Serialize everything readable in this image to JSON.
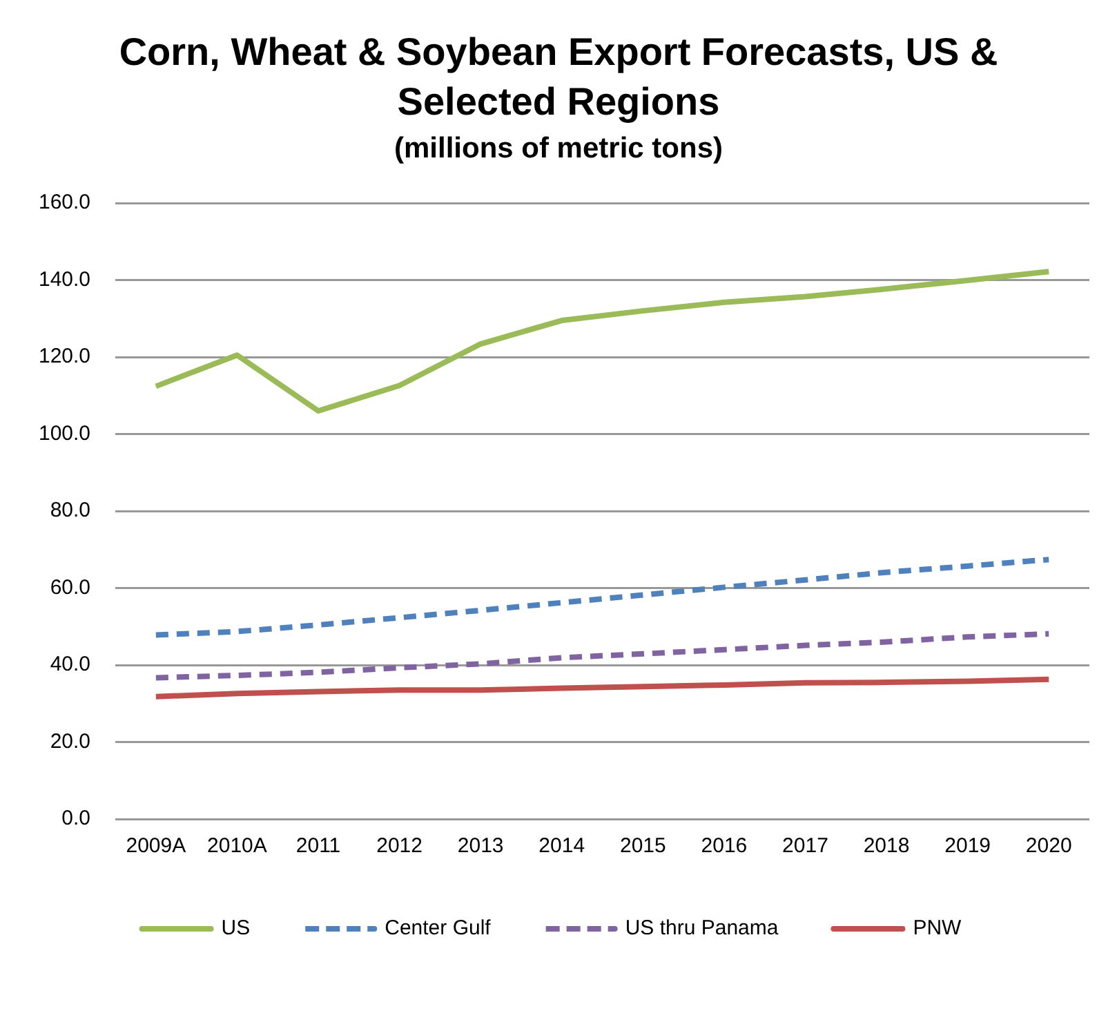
{
  "chart_data": {
    "type": "line",
    "title": "Corn, Wheat & Soybean Export Forecasts, US & Selected Regions",
    "subtitle": "(millions of metric tons)",
    "categories": [
      "2009A",
      "2010A",
      "2011",
      "2012",
      "2013",
      "2014",
      "2015",
      "2016",
      "2017",
      "2018",
      "2019",
      "2020"
    ],
    "series": [
      {
        "name": "US",
        "color": "#9bbb59",
        "line_style": "solid",
        "values": [
          112.4,
          120.5,
          106,
          112.6,
          123.4,
          129.5,
          132,
          134.2,
          135.7,
          137.7,
          139.9,
          142.2
        ]
      },
      {
        "name": "Center Gulf",
        "color": "#4f81bd",
        "line_style": "dashed",
        "values": [
          47.8,
          48.7,
          50.4,
          52.3,
          54.2,
          56.2,
          58.2,
          60.2,
          62.1,
          64.1,
          65.7,
          67.4
        ]
      },
      {
        "name": "US thru Panama",
        "color": "#8064a2",
        "line_style": "dashed",
        "values": [
          36.7,
          37.3,
          38.1,
          39.3,
          40.3,
          41.9,
          42.9,
          44,
          45.1,
          46,
          47.3,
          48.1
        ]
      },
      {
        "name": "PNW",
        "color": "#c0504d",
        "line_style": "solid",
        "values": [
          31.8,
          32.6,
          33.1,
          33.5,
          33.5,
          34,
          34.4,
          34.8,
          35.4,
          35.5,
          35.8,
          36.3
        ]
      }
    ],
    "ylim": [
      0,
      160
    ],
    "yticks": [
      {
        "value": 0,
        "label": "0.0"
      },
      {
        "value": 20,
        "label": "20.0"
      },
      {
        "value": 40,
        "label": "40.0"
      },
      {
        "value": 60,
        "label": "60.0"
      },
      {
        "value": 80,
        "label": "80.0"
      },
      {
        "value": 100,
        "label": "100.0"
      },
      {
        "value": 120,
        "label": "120.0"
      },
      {
        "value": 140,
        "label": "140.0"
      },
      {
        "value": 160,
        "label": "160.0"
      }
    ],
    "grid": "y",
    "legend": "bottom",
    "marker": "none"
  }
}
